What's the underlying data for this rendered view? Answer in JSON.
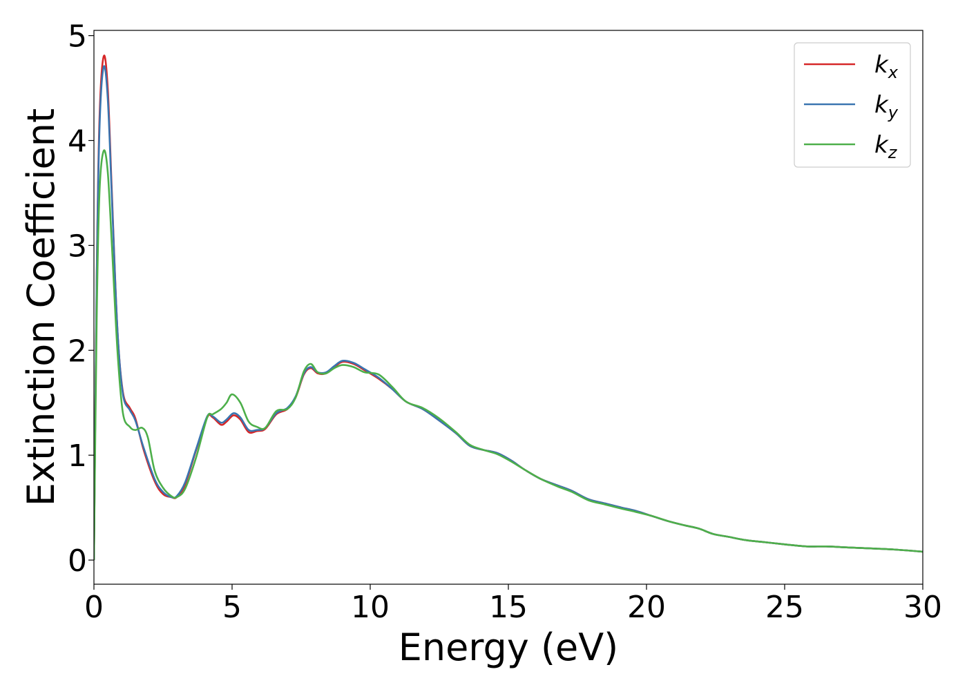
{
  "chart_data": {
    "type": "line",
    "title": "",
    "xlabel": "Energy (eV)",
    "ylabel": "Extinction Coefficient",
    "xlim": [
      0,
      30
    ],
    "ylim": [
      -0.23,
      5.05
    ],
    "xticks": [
      0,
      5,
      10,
      15,
      20,
      25,
      30
    ],
    "yticks": [
      0,
      1,
      2,
      3,
      4,
      5
    ],
    "grid": false,
    "legend_position": "top-right",
    "series": [
      {
        "name": "k_x",
        "label_base": "k",
        "label_sub": "x",
        "color": "#d62728",
        "points": [
          [
            0,
            0.0
          ],
          [
            0.1,
            2.7
          ],
          [
            0.2,
            4.2
          ],
          [
            0.35,
            4.8
          ],
          [
            0.5,
            4.5
          ],
          [
            0.65,
            3.5
          ],
          [
            0.85,
            2.2
          ],
          [
            1.05,
            1.6
          ],
          [
            1.3,
            1.45
          ],
          [
            1.5,
            1.35
          ],
          [
            1.8,
            1.05
          ],
          [
            2.2,
            0.75
          ],
          [
            2.5,
            0.63
          ],
          [
            2.8,
            0.6
          ],
          [
            3.0,
            0.6
          ],
          [
            3.3,
            0.72
          ],
          [
            3.7,
            1.05
          ],
          [
            4.1,
            1.36
          ],
          [
            4.3,
            1.36
          ],
          [
            4.6,
            1.29
          ],
          [
            4.8,
            1.32
          ],
          [
            5.05,
            1.38
          ],
          [
            5.3,
            1.34
          ],
          [
            5.6,
            1.22
          ],
          [
            5.9,
            1.23
          ],
          [
            6.2,
            1.25
          ],
          [
            6.6,
            1.39
          ],
          [
            7.0,
            1.44
          ],
          [
            7.3,
            1.55
          ],
          [
            7.6,
            1.77
          ],
          [
            7.85,
            1.83
          ],
          [
            8.1,
            1.78
          ],
          [
            8.4,
            1.78
          ],
          [
            8.7,
            1.84
          ],
          [
            9.0,
            1.89
          ],
          [
            9.4,
            1.87
          ],
          [
            9.8,
            1.81
          ],
          [
            10.3,
            1.73
          ],
          [
            10.8,
            1.63
          ],
          [
            11.3,
            1.51
          ],
          [
            11.9,
            1.44
          ],
          [
            12.5,
            1.33
          ],
          [
            13.1,
            1.21
          ],
          [
            13.6,
            1.09
          ],
          [
            14.1,
            1.05
          ],
          [
            14.6,
            1.02
          ],
          [
            15.1,
            0.95
          ],
          [
            15.6,
            0.86
          ],
          [
            16.2,
            0.77
          ],
          [
            16.8,
            0.71
          ],
          [
            17.3,
            0.66
          ],
          [
            17.9,
            0.58
          ],
          [
            18.5,
            0.54
          ],
          [
            19.1,
            0.5
          ],
          [
            19.6,
            0.47
          ],
          [
            20.2,
            0.42
          ],
          [
            20.8,
            0.37
          ],
          [
            21.4,
            0.33
          ],
          [
            21.9,
            0.3
          ],
          [
            22.4,
            0.25
          ],
          [
            23.0,
            0.22
          ],
          [
            23.6,
            0.19
          ],
          [
            24.3,
            0.17
          ],
          [
            25.0,
            0.15
          ],
          [
            25.8,
            0.13
          ],
          [
            26.5,
            0.13
          ],
          [
            27.3,
            0.12
          ],
          [
            28.2,
            0.11
          ],
          [
            29.0,
            0.1
          ],
          [
            30.0,
            0.08
          ]
        ]
      },
      {
        "name": "k_y",
        "label_base": "k",
        "label_sub": "y",
        "color": "#3a75b0",
        "points": [
          [
            0,
            0.0
          ],
          [
            0.1,
            2.65
          ],
          [
            0.2,
            4.1
          ],
          [
            0.35,
            4.7
          ],
          [
            0.5,
            4.4
          ],
          [
            0.65,
            3.45
          ],
          [
            0.85,
            2.2
          ],
          [
            1.05,
            1.58
          ],
          [
            1.3,
            1.43
          ],
          [
            1.5,
            1.33
          ],
          [
            1.8,
            1.07
          ],
          [
            2.2,
            0.77
          ],
          [
            2.5,
            0.65
          ],
          [
            2.8,
            0.6
          ],
          [
            3.0,
            0.61
          ],
          [
            3.3,
            0.74
          ],
          [
            3.7,
            1.06
          ],
          [
            4.1,
            1.37
          ],
          [
            4.3,
            1.37
          ],
          [
            4.6,
            1.31
          ],
          [
            4.8,
            1.34
          ],
          [
            5.05,
            1.4
          ],
          [
            5.3,
            1.36
          ],
          [
            5.6,
            1.24
          ],
          [
            5.9,
            1.24
          ],
          [
            6.2,
            1.26
          ],
          [
            6.6,
            1.4
          ],
          [
            7.0,
            1.45
          ],
          [
            7.3,
            1.56
          ],
          [
            7.6,
            1.78
          ],
          [
            7.85,
            1.84
          ],
          [
            8.1,
            1.79
          ],
          [
            8.4,
            1.79
          ],
          [
            8.7,
            1.85
          ],
          [
            9.0,
            1.9
          ],
          [
            9.4,
            1.88
          ],
          [
            9.8,
            1.82
          ],
          [
            10.3,
            1.74
          ],
          [
            10.8,
            1.63
          ],
          [
            11.3,
            1.51
          ],
          [
            11.9,
            1.44
          ],
          [
            12.5,
            1.33
          ],
          [
            13.1,
            1.21
          ],
          [
            13.6,
            1.09
          ],
          [
            14.1,
            1.05
          ],
          [
            14.6,
            1.02
          ],
          [
            15.1,
            0.95
          ],
          [
            15.6,
            0.86
          ],
          [
            16.2,
            0.77
          ],
          [
            16.8,
            0.71
          ],
          [
            17.3,
            0.66
          ],
          [
            17.9,
            0.58
          ],
          [
            18.5,
            0.54
          ],
          [
            19.1,
            0.5
          ],
          [
            19.6,
            0.47
          ],
          [
            20.2,
            0.42
          ],
          [
            20.8,
            0.37
          ],
          [
            21.4,
            0.33
          ],
          [
            21.9,
            0.3
          ],
          [
            22.4,
            0.25
          ],
          [
            23.0,
            0.22
          ],
          [
            23.6,
            0.19
          ],
          [
            24.3,
            0.17
          ],
          [
            25.0,
            0.15
          ],
          [
            25.8,
            0.13
          ],
          [
            26.5,
            0.13
          ],
          [
            27.3,
            0.12
          ],
          [
            28.2,
            0.11
          ],
          [
            29.0,
            0.1
          ],
          [
            30.0,
            0.08
          ]
        ]
      },
      {
        "name": "k_z",
        "label_base": "k",
        "label_sub": "z",
        "color": "#4daf4a",
        "points": [
          [
            0,
            0.0
          ],
          [
            0.1,
            2.3
          ],
          [
            0.2,
            3.5
          ],
          [
            0.35,
            3.9
          ],
          [
            0.5,
            3.7
          ],
          [
            0.65,
            3.0
          ],
          [
            0.85,
            2.0
          ],
          [
            1.05,
            1.4
          ],
          [
            1.3,
            1.27
          ],
          [
            1.5,
            1.24
          ],
          [
            1.75,
            1.26
          ],
          [
            1.95,
            1.17
          ],
          [
            2.2,
            0.85
          ],
          [
            2.5,
            0.69
          ],
          [
            2.8,
            0.61
          ],
          [
            3.0,
            0.6
          ],
          [
            3.3,
            0.68
          ],
          [
            3.7,
            0.98
          ],
          [
            4.1,
            1.36
          ],
          [
            4.3,
            1.39
          ],
          [
            4.6,
            1.44
          ],
          [
            4.8,
            1.5
          ],
          [
            5.0,
            1.58
          ],
          [
            5.3,
            1.5
          ],
          [
            5.6,
            1.32
          ],
          [
            5.9,
            1.27
          ],
          [
            6.2,
            1.26
          ],
          [
            6.6,
            1.42
          ],
          [
            7.0,
            1.44
          ],
          [
            7.3,
            1.55
          ],
          [
            7.6,
            1.8
          ],
          [
            7.85,
            1.87
          ],
          [
            8.1,
            1.79
          ],
          [
            8.4,
            1.78
          ],
          [
            8.7,
            1.83
          ],
          [
            9.0,
            1.86
          ],
          [
            9.4,
            1.84
          ],
          [
            9.8,
            1.79
          ],
          [
            10.3,
            1.77
          ],
          [
            10.8,
            1.65
          ],
          [
            11.3,
            1.51
          ],
          [
            11.9,
            1.45
          ],
          [
            12.5,
            1.35
          ],
          [
            13.1,
            1.22
          ],
          [
            13.6,
            1.1
          ],
          [
            14.1,
            1.05
          ],
          [
            14.6,
            1.01
          ],
          [
            15.1,
            0.94
          ],
          [
            15.6,
            0.86
          ],
          [
            16.2,
            0.77
          ],
          [
            16.8,
            0.7
          ],
          [
            17.3,
            0.65
          ],
          [
            17.9,
            0.57
          ],
          [
            18.5,
            0.53
          ],
          [
            19.1,
            0.49
          ],
          [
            19.6,
            0.46
          ],
          [
            20.2,
            0.42
          ],
          [
            20.8,
            0.37
          ],
          [
            21.4,
            0.33
          ],
          [
            21.9,
            0.3
          ],
          [
            22.4,
            0.25
          ],
          [
            23.0,
            0.22
          ],
          [
            23.6,
            0.19
          ],
          [
            24.3,
            0.17
          ],
          [
            25.0,
            0.15
          ],
          [
            25.8,
            0.13
          ],
          [
            26.5,
            0.13
          ],
          [
            27.3,
            0.12
          ],
          [
            28.2,
            0.11
          ],
          [
            29.0,
            0.1
          ],
          [
            30.0,
            0.08
          ]
        ]
      }
    ]
  }
}
